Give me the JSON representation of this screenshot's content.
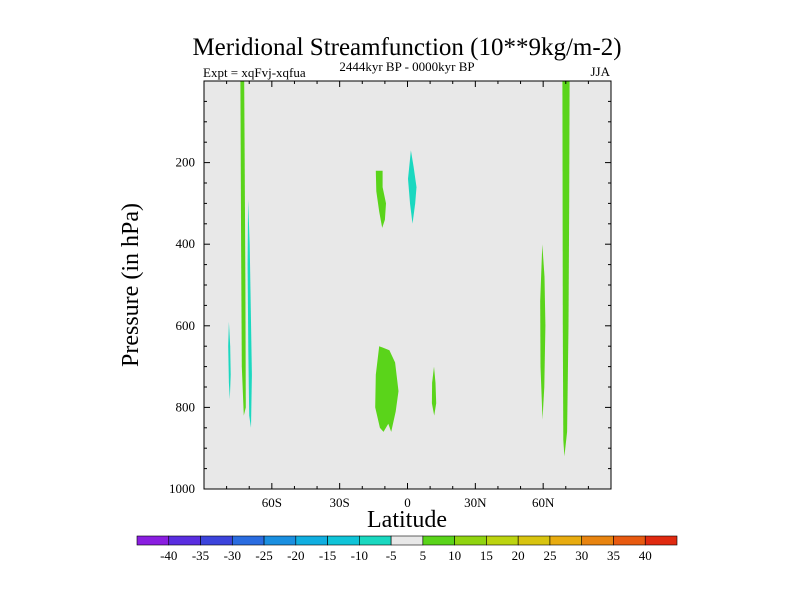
{
  "chart_data": {
    "type": "heatmap",
    "title": "Meridional Streamfunction (10**9kg/m-2)",
    "subtitle_left": "Expt = xqFvj-xqfua",
    "subtitle_center": "2444kyr BP - 0000kyr BP",
    "subtitle_right": "JJA",
    "xlabel": "Latitude",
    "ylabel": "Pressure (in hPa)",
    "xlim": [
      -90,
      90
    ],
    "ylim": [
      1000,
      0
    ],
    "x_ticks": [
      {
        "value": -60,
        "label": "60S"
      },
      {
        "value": -30,
        "label": "30S"
      },
      {
        "value": 0,
        "label": "0"
      },
      {
        "value": 30,
        "label": "30N"
      },
      {
        "value": 60,
        "label": "60N"
      }
    ],
    "y_ticks": [
      {
        "value": 200,
        "label": "200"
      },
      {
        "value": 400,
        "label": "400"
      },
      {
        "value": 600,
        "label": "600"
      },
      {
        "value": 800,
        "label": "800"
      },
      {
        "value": 1000,
        "label": "1000"
      }
    ],
    "background_value_color": "#e8e8e8",
    "colorbar": {
      "labels": [
        "-40",
        "-35",
        "-30",
        "-25",
        "-20",
        "-15",
        "-10",
        "-5",
        "5",
        "10",
        "15",
        "20",
        "25",
        "30",
        "35",
        "40"
      ],
      "colors": [
        "#8a1ee0",
        "#5a2ee0",
        "#3c44dc",
        "#2a6ce0",
        "#1a8fe0",
        "#10aee0",
        "#10c4d8",
        "#1ad8c0",
        "#e8e8e8",
        "#5ad41a",
        "#90d410",
        "#bcd410",
        "#d8c410",
        "#e8ac10",
        "#e88410",
        "#e85a10",
        "#e02a10"
      ]
    },
    "regions": [
      {
        "name": "nh-polar-positive-column",
        "level": "5 to 10",
        "color": "#5ad41a",
        "points": [
          [
            -73.9,
            0
          ],
          [
            -72.2,
            0
          ],
          [
            -72.0,
            200
          ],
          [
            -71.7,
            500
          ],
          [
            -71.5,
            800
          ],
          [
            -72.4,
            820
          ],
          [
            -73.3,
            700
          ],
          [
            -73.6,
            400
          ]
        ]
      },
      {
        "name": "sh-polar-negative-column",
        "level": "-10 to -5",
        "color": "#1ad8c0",
        "points": [
          [
            -70.5,
            290
          ],
          [
            -69.8,
            400
          ],
          [
            -69.3,
            560
          ],
          [
            -68.8,
            720
          ],
          [
            -69.2,
            850
          ],
          [
            -70.0,
            820
          ],
          [
            -70.4,
            660
          ],
          [
            -70.7,
            450
          ]
        ]
      },
      {
        "name": "left-negative-sliver",
        "level": "-10 to -5",
        "color": "#1ad8c0",
        "points": [
          [
            -79.0,
            590
          ],
          [
            -78.4,
            650
          ],
          [
            -78.2,
            720
          ],
          [
            -78.6,
            780
          ],
          [
            -79.0,
            740
          ],
          [
            -79.3,
            650
          ]
        ]
      },
      {
        "name": "tropical-upper-positive",
        "level": "5 to 10",
        "color": "#5ad41a",
        "points": [
          [
            -14.0,
            220
          ],
          [
            -11.0,
            220
          ],
          [
            -11.0,
            260
          ],
          [
            -9.5,
            300
          ],
          [
            -10.0,
            340
          ],
          [
            -11.2,
            360
          ],
          [
            -12.5,
            320
          ],
          [
            -13.8,
            270
          ]
        ]
      },
      {
        "name": "equatorial-upper-negative",
        "level": "-10 to -5",
        "color": "#1ad8c0",
        "points": [
          [
            1.5,
            170
          ],
          [
            2.7,
            210
          ],
          [
            4.0,
            260
          ],
          [
            3.4,
            300
          ],
          [
            2.2,
            350
          ],
          [
            1.1,
            300
          ],
          [
            0.2,
            240
          ]
        ]
      },
      {
        "name": "tropical-lower-positive",
        "level": "5 to 10",
        "color": "#5ad41a",
        "points": [
          [
            -12.5,
            650
          ],
          [
            -8.0,
            660
          ],
          [
            -5.5,
            690
          ],
          [
            -4.0,
            760
          ],
          [
            -5.2,
            810
          ],
          [
            -7.2,
            860
          ],
          [
            -8.5,
            840
          ],
          [
            -10.6,
            860
          ],
          [
            -12.2,
            850
          ],
          [
            -14.3,
            800
          ],
          [
            -14.0,
            720
          ]
        ]
      },
      {
        "name": "nh-subtropical-positive-blob",
        "level": "5 to 10",
        "color": "#5ad41a",
        "points": [
          [
            11.7,
            700
          ],
          [
            12.4,
            740
          ],
          [
            12.7,
            790
          ],
          [
            11.8,
            820
          ],
          [
            10.8,
            790
          ],
          [
            10.9,
            740
          ]
        ]
      },
      {
        "name": "nh-midlatitude-positive-sliver",
        "level": "5 to 10",
        "color": "#5ad41a",
        "points": [
          [
            59.6,
            400
          ],
          [
            60.6,
            480
          ],
          [
            61.0,
            600
          ],
          [
            60.5,
            750
          ],
          [
            59.7,
            830
          ],
          [
            58.8,
            700
          ],
          [
            58.7,
            540
          ]
        ]
      },
      {
        "name": "nh-polar-positive-column-right",
        "level": "5 to 10",
        "color": "#5ad41a",
        "points": [
          [
            68.5,
            0
          ],
          [
            71.7,
            0
          ],
          [
            71.5,
            300
          ],
          [
            71.2,
            600
          ],
          [
            70.6,
            860
          ],
          [
            69.4,
            920
          ],
          [
            68.9,
            880
          ],
          [
            68.7,
            600
          ],
          [
            68.6,
            300
          ]
        ]
      }
    ]
  }
}
